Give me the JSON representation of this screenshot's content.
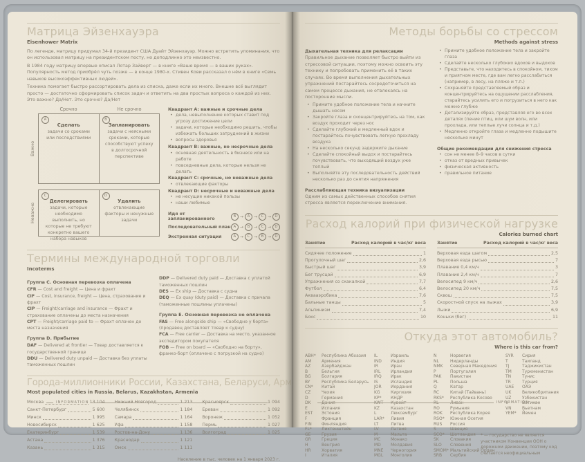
{
  "left_page": {
    "eisenhower": {
      "title": "Матрица Эйзенхауэра",
      "subtitle": "Eisenhower Matrix",
      "intro": [
        "По легенде, матрицу придумал 34-й президент США Дуайт Эйзенхауэр. Можно встретить упоминания, что он использовал матрицу на президентском посту, но доподлинно это неизвестно.",
        "В 1984 году матрицу впервые описал Лотар Зайверт — в книге «Ваше время — в ваших руках». Популярность метод приобрёл чуть позже — в конце 1980-х. Стивен Кови рассказал о нём в книге «Семь навыков высокоэффективных людей».",
        "Техника помогает быстро рассортировать дела из списка, даже если их много. Внешне всё выглядит просто — достаточно сформировать список задач и ответить на два простых вопроса о каждой из них. Это важно? Да/Нет. Это срочно? Да/Нет"
      ],
      "matrix": {
        "col_labels": [
          "Срочно",
          "Не срочно"
        ],
        "row_labels": [
          "Важно",
          "Неважно"
        ],
        "row1": [
          {
            "letter": "A",
            "title": "Сделать",
            "desc": "задачи со сроками или последствиями"
          },
          {
            "letter": "B",
            "title": "Запланировать",
            "desc": "задачи с неясными сроками, которые способствуют успеху в долгосрочной перспективе"
          }
        ],
        "row2": [
          {
            "letter": "C",
            "title": "Делегировать",
            "desc": "задачи, которые необходимо выполнить, но которые не требуют конкретно вашего набора навыков"
          },
          {
            "letter": "D",
            "title": "Удалить",
            "desc": "отвлекающие факторы и ненужные задачи"
          }
        ]
      },
      "quadrant_notes": [
        {
          "heading": "Квадрант A: важные и срочные дела",
          "items": [
            "дела, невыполнение которых ставит под угрозу достижение цели",
            "задачи, которые необходимо решить, чтобы избежать больших затруднений в жизни",
            "вопросы здоровья"
          ]
        },
        {
          "heading": "Квадрант B: важные, но несрочные дела",
          "items": [
            "основная деятельность в бизнесе или на работе",
            "повседневные дела, которые нельзя не делать"
          ]
        },
        {
          "heading": "Квадрант C: срочные, но неважные дела",
          "items": [
            "отвлекающие факторы"
          ]
        },
        {
          "heading": "Квадрант D: несрочные и неважные дела",
          "items": [
            "не несущие никакой пользы",
            "наши любимые"
          ]
        }
      ],
      "sequences": [
        {
          "label": "Идя от запланированного",
          "order": [
            "B",
            "A",
            "C",
            "D"
          ]
        },
        {
          "label": "Последовательный план",
          "order": [
            "A",
            "B",
            "C",
            "D"
          ]
        },
        {
          "label": "Экстренная ситуация",
          "order": [
            "A",
            "C",
            "B",
            "D"
          ]
        }
      ]
    },
    "incoterms": {
      "title": "Термины международной торговли",
      "subtitle": "Incoterms",
      "columns": [
        {
          "groups": [
            {
              "heading": "Группа C. Основная перевозка оплачена",
              "terms": [
                {
                  "code": "CFR",
                  "desc": "— Cost and freight — Цена и фрахт"
                },
                {
                  "code": "CIF",
                  "desc": "— Cost, insurance, freight — Цена, страхование и фрахт"
                },
                {
                  "code": "CIP",
                  "desc": "— Freight/carriage and insurance — Фрахт и страхование оплачены до места назначения"
                },
                {
                  "code": "CPT",
                  "desc": "— Freight/carriage paid to — Фрахт оплачен до места назначения"
                }
              ]
            },
            {
              "heading": "Группа D. Прибытие",
              "terms": [
                {
                  "code": "DAF",
                  "desc": "— Delivered at frontier — Товар доставляется к государственной границе"
                },
                {
                  "code": "DDU",
                  "desc": "— Delivered duty unpaid — Доставка без уплаты таможенных пошлин"
                }
              ]
            }
          ]
        },
        {
          "groups": [
            {
              "heading": "",
              "terms": [
                {
                  "code": "DDP",
                  "desc": "— Delivered duty paid — Доставка с уплатой таможенных пошлин"
                },
                {
                  "code": "DES",
                  "desc": "— Ex ship — Доставка с судна"
                },
                {
                  "code": "DEQ",
                  "desc": "— Ex quay (duty paid) — Доставка с причала (таможенные пошлины уплачены)"
                }
              ]
            },
            {
              "heading": "Группа E. Основная перевозка не оплачена",
              "terms": [
                {
                  "code": "FAS",
                  "desc": "— Free alongside ship — «Свободно у борта» (продавец доставляет товар к судну)"
                },
                {
                  "code": "FCA",
                  "desc": "— Free carrier — Доставка на место, указанное экспедитором покупателя"
                },
                {
                  "code": "FOB",
                  "desc": "— Free on board — «Свободно на борту», франко-борт (оплачено с погрузкой на судно)"
                }
              ]
            }
          ]
        }
      ]
    },
    "cities": {
      "title": "Города-миллионники России, Казахстана, Беларуси, Армении",
      "subtitle": "Most populated cities in Russia, Belarus, Kazakhstan, Armenia",
      "columns": [
        [
          {
            "name": "Москва",
            "value": "13 104"
          },
          {
            "name": "Санкт-Петербург",
            "value": "5 600"
          },
          {
            "name": "Минск",
            "value": "1 995"
          },
          {
            "name": "Новосибирск",
            "value": "1 625"
          },
          {
            "name": "Екатеринбург",
            "value": "1 539"
          },
          {
            "name": "Астана",
            "value": "1 376"
          },
          {
            "name": "Казань",
            "value": "1 315"
          }
        ],
        [
          {
            "name": "Нижний Новгород",
            "value": "1 213"
          },
          {
            "name": "Челябинск",
            "value": "1 184"
          },
          {
            "name": "Самара",
            "value": "1 164"
          },
          {
            "name": "Уфа",
            "value": "1 158"
          },
          {
            "name": "Ростов-на-Дону",
            "value": "1 136"
          },
          {
            "name": "Краснодар",
            "value": "1 121"
          },
          {
            "name": "Омск",
            "value": "1 111"
          }
        ],
        [
          {
            "name": "Красноярск",
            "value": "1 094"
          },
          {
            "name": "Ереван",
            "value": "1 092"
          },
          {
            "name": "Воронеж",
            "value": "1 052"
          },
          {
            "name": "Пермь",
            "value": "1 027"
          },
          {
            "name": "Волгоград",
            "value": "1 025"
          }
        ]
      ],
      "note": "Население в тыс. человек на 1 января 2023 г."
    },
    "footer_label": "INFORMATION"
  },
  "right_page": {
    "stress": {
      "title": "Методы борьбы со стрессом",
      "subtitle": "Methods against stress",
      "left_col": {
        "heading1": "Дыхательная техника для релаксации",
        "para1": "Правильное дыхание позволяет быстро выйти из стрессовой ситуации, поэтому можно освоить эту технику и попробовать применить её в таких случаях. Во время выполнения дыхательных упражнений постарайтесь сосредоточиться на самом процессе дыхания, не отвлекаясь на посторонние мысли.",
        "bullets": [
          "Примите удобное положение тела и начните дышать носом",
          "Закройте глаза и сконцентрируйтесь на том, как воздух проходит через нос",
          "Сделайте глубокий и медленный вдох и постарайтесь почувствовать легкую прохладу воздуха",
          "На несколько секунд задержите дыхание",
          "Сделайте спокойный выдох и постарайтесь почувствовать, что выходящий воздух уже теплый",
          "Выполняйте эту последовательность действий несколько раз до снятия напряжения"
        ],
        "heading2": "Расслабляющая техника визуализации",
        "para2": "Одним из самых действенных способов снятия стресса является переключение внимания."
      },
      "right_col": {
        "bullets": [
          "Примите удобное положение тела и закройте глаза",
          "Сделайте несколько глубоких вдохов и выдохов",
          "Представьте, что находитесь в спокойном, тихом и приятном месте, где вам легко расслабиться (например, в лесу, на пляже и т.п.)",
          "Сохраняйте представляемый образ и концентрируйтесь на ощущении расслабления, старайтесь усилить его и погрузиться в него как можно глубже",
          "Детализируйте образ, представляя его во всех деталях (пение птиц, или шум волн, или прохлада, или теплые лучи солнца и т.д.)",
          "Медленно откройте глаза и медленно подышите несколько минут"
        ],
        "heading": "Общие рекомендации для снижения стресса",
        "bullets2": [
          "сон не менее 8–9 часов в сутки",
          "отказ от вредных привычек",
          "физическая активность",
          "правильное питание"
        ]
      }
    },
    "calories": {
      "title": "Расход калорий при физической нагрузке",
      "subtitle": "Calories burned chart",
      "header": {
        "label": "Занятие",
        "value": "Расход калорий в час/кг веса"
      },
      "tables": [
        [
          {
            "name": "Сидячее положение",
            "value": "1"
          },
          {
            "name": "Прогулочный шаг",
            "value": "2,6"
          },
          {
            "name": "Быстрый шаг",
            "value": "3,9"
          },
          {
            "name": "Бег трусцой",
            "value": "6,9"
          },
          {
            "name": "Упражнения со скакалкой",
            "value": "7,7"
          },
          {
            "name": "Футбол",
            "value": "6,4"
          },
          {
            "name": "Аквааэробика",
            "value": "7,6"
          },
          {
            "name": "Бальные танцы",
            "value": "5"
          },
          {
            "name": "Альпинизм",
            "value": "7,4"
          },
          {
            "name": "Бокс",
            "value": "10"
          }
        ],
        [
          {
            "name": "Верховая езда шагом",
            "value": "2,5"
          },
          {
            "name": "Верховая езда рысью",
            "value": "7"
          },
          {
            "name": "Плавание 0,4 км/ч",
            "value": "3"
          },
          {
            "name": "Плавание 2,4 км/ч",
            "value": "7"
          },
          {
            "name": "Велосипед 9 км/ч",
            "value": "2,6"
          },
          {
            "name": "Велосипед 20 км/ч",
            "value": "7,5"
          },
          {
            "name": "Сквош",
            "value": "7,5"
          },
          {
            "name": "Скоростной спуск на лыжах",
            "value": "3,9"
          },
          {
            "name": "Лыжи",
            "value": "6,9"
          },
          {
            "name": "Коньки (бег)",
            "value": "11"
          }
        ]
      ]
    },
    "car": {
      "title": "Откуда этот автомобиль?",
      "subtitle": "Where is this car from?",
      "groups": [
        [
          {
            "code": "ABH*",
            "country": "Республика Абхазия"
          },
          {
            "code": "AM",
            "country": "Армения"
          },
          {
            "code": "AZ",
            "country": "Азербайджан"
          },
          {
            "code": "B",
            "country": "Бельгия"
          },
          {
            "code": "BG",
            "country": "Болгария"
          },
          {
            "code": "BY",
            "country": "Республика Беларусь"
          },
          {
            "code": "CN*",
            "country": "Китай"
          },
          {
            "code": "CZ",
            "country": "Чехия"
          },
          {
            "code": "D",
            "country": "Германия"
          },
          {
            "code": "DK",
            "country": "Дания"
          },
          {
            "code": "E",
            "country": "Испания"
          },
          {
            "code": "EST",
            "country": "Эстония"
          },
          {
            "code": "F",
            "country": "Франция"
          },
          {
            "code": "FIN",
            "country": "Финляндия"
          },
          {
            "code": "FL*",
            "country": "Лихтенштейн"
          },
          {
            "code": "GE",
            "country": "Грузия"
          },
          {
            "code": "GR",
            "country": "Греция"
          },
          {
            "code": "H",
            "country": "Венгрия"
          },
          {
            "code": "HR",
            "country": "Хорватия"
          },
          {
            "code": "I",
            "country": "Италия"
          }
        ],
        [
          {
            "code": "IL",
            "country": "Израиль"
          },
          {
            "code": "IND",
            "country": "Индия"
          },
          {
            "code": "IR",
            "country": "Иран"
          },
          {
            "code": "IRL",
            "country": "Ирландия"
          },
          {
            "code": "IRQ",
            "country": "Ирак"
          },
          {
            "code": "IS",
            "country": "Исландия"
          },
          {
            "code": "JOR",
            "country": "Иордания"
          },
          {
            "code": "KG",
            "country": "Киргизия"
          },
          {
            "code": "KP*",
            "country": "КНДР"
          },
          {
            "code": "KWT",
            "country": "Кувейт"
          },
          {
            "code": "KZ",
            "country": "Казахстан"
          },
          {
            "code": "L",
            "country": "Люксембург"
          },
          {
            "code": "LAR*",
            "country": "Ливия"
          },
          {
            "code": "LT",
            "country": "Литва"
          },
          {
            "code": "LV",
            "country": "Латвия"
          },
          {
            "code": "M",
            "country": "Мальта"
          },
          {
            "code": "MC",
            "country": "Монако"
          },
          {
            "code": "MD",
            "country": "Молдавия"
          },
          {
            "code": "MNE",
            "country": "Черногория"
          },
          {
            "code": "MGL",
            "country": "Монголия"
          }
        ],
        [
          {
            "code": "N",
            "country": "Норвегия"
          },
          {
            "code": "NL",
            "country": "Нидерланды"
          },
          {
            "code": "NMK",
            "country": "Северная Македония"
          },
          {
            "code": "P",
            "country": "Португалия"
          },
          {
            "code": "PAK",
            "country": "Пакистан"
          },
          {
            "code": "PL",
            "country": "Польша"
          },
          {
            "code": "Q",
            "country": "Катар"
          },
          {
            "code": "RC",
            "country": "Китай (Тайвань)"
          },
          {
            "code": "RKS*",
            "country": "Республика Косово"
          },
          {
            "code": "RL",
            "country": "Ливан"
          },
          {
            "code": "RO",
            "country": "Румыния"
          },
          {
            "code": "ROK",
            "country": "Республика Корея"
          },
          {
            "code": "RSO*",
            "country": "Южная Осетия"
          },
          {
            "code": "RUS",
            "country": "Россия"
          },
          {
            "code": "S",
            "country": "Швеция"
          },
          {
            "code": "SCO*",
            "country": "Шотландия"
          },
          {
            "code": "SK",
            "country": "Словакия"
          },
          {
            "code": "SLO",
            "country": "Словения"
          },
          {
            "code": "SMOM*",
            "country": "Мальтийский Орден"
          },
          {
            "code": "SRB",
            "country": "Сербия"
          }
        ],
        [
          {
            "code": "SYR",
            "country": "Сирия"
          },
          {
            "code": "T",
            "country": "Таиланд"
          },
          {
            "code": "TJ",
            "country": "Таджикистан"
          },
          {
            "code": "TM",
            "country": "Туркменистан"
          },
          {
            "code": "TN",
            "country": "Тунис"
          },
          {
            "code": "TR",
            "country": "Турция"
          },
          {
            "code": "UAE",
            "country": "ОАЭ"
          },
          {
            "code": "UK",
            "country": "Великобритания"
          },
          {
            "code": "UZ",
            "country": "Узбекистан"
          },
          {
            "code": "V",
            "country": "Ватикан"
          },
          {
            "code": "VN",
            "country": "Вьетнам"
          },
          {
            "code": "YEM*",
            "country": "Йемен"
          }
        ]
      ],
      "note": "* — государство не является участником Конвенции ООН о дорожном движении, поэтому код считается неофициальным"
    },
    "footer_label": "INFORMATION"
  }
}
